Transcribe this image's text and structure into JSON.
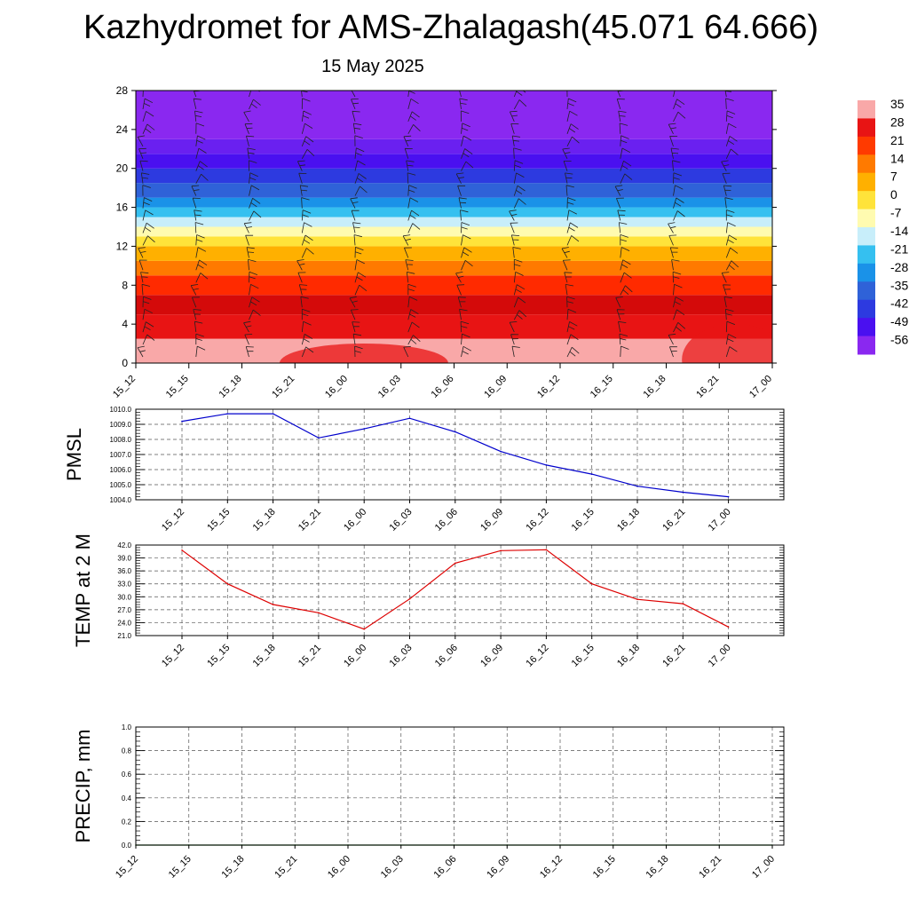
{
  "header": {
    "title": "Kazhydromet for AMS-Zhalagash(45.071 64.666)",
    "subtitle": "15 May 2025"
  },
  "colors": {
    "pmsl_line": "#0000cc",
    "temp_line": "#dd0000",
    "precip_line": "#006600",
    "grid": "#555555"
  },
  "colorbar": {
    "labels": [
      "35",
      "28",
      "21",
      "14",
      "7",
      "0",
      "-7",
      "-14",
      "-21",
      "-28",
      "-35",
      "-42",
      "-49",
      "-56"
    ],
    "colors": [
      "#f9a8a8",
      "#e81414",
      "#ff3a00",
      "#ff7a00",
      "#ffb000",
      "#ffe33a",
      "#fffbb0",
      "#c8eefa",
      "#35c0f0",
      "#1a92e8",
      "#2f62d8",
      "#2d3ae0",
      "#4a10f0",
      "#8a28f0"
    ]
  },
  "chart_data": [
    {
      "type": "heatmap",
      "title": "",
      "xlabel": "",
      "ylabel": "",
      "x": [
        "15_12",
        "15_15",
        "15_18",
        "15_21",
        "16_00",
        "16_03",
        "16_06",
        "16_09",
        "16_12",
        "16_15",
        "16_18",
        "16_21",
        "17_00"
      ],
      "ylim": [
        0,
        28
      ],
      "yticks": [
        0,
        4,
        8,
        12,
        16,
        20,
        24,
        28
      ],
      "levels": [
        {
          "y0": 0,
          "y1": 2.5,
          "value": 35
        },
        {
          "y0": 2.5,
          "y1": 5,
          "value": 30
        },
        {
          "y0": 5,
          "y1": 7,
          "value": 26
        },
        {
          "y0": 7,
          "y1": 9,
          "value": 21
        },
        {
          "y0": 9,
          "y1": 10.5,
          "value": 14
        },
        {
          "y0": 10.5,
          "y1": 12,
          "value": 7
        },
        {
          "y0": 12,
          "y1": 13,
          "value": 0
        },
        {
          "y0": 13,
          "y1": 14,
          "value": -7
        },
        {
          "y0": 14,
          "y1": 15,
          "value": -14
        },
        {
          "y0": 15,
          "y1": 16,
          "value": -21
        },
        {
          "y0": 16,
          "y1": 17,
          "value": -28
        },
        {
          "y0": 17,
          "y1": 18.5,
          "value": -35
        },
        {
          "y0": 18.5,
          "y1": 20,
          "value": -42
        },
        {
          "y0": 20,
          "y1": 21.5,
          "value": -49
        },
        {
          "y0": 21.5,
          "y1": 23,
          "value": -56
        },
        {
          "y0": 23,
          "y1": 28,
          "value": -60
        }
      ],
      "wind_barbs": true
    },
    {
      "type": "line",
      "title": "",
      "xlabel": "",
      "ylabel": "PMSL",
      "x": [
        "15_12",
        "15_15",
        "15_18",
        "15_21",
        "16_00",
        "16_03",
        "16_06",
        "16_09",
        "16_12",
        "16_15",
        "16_18",
        "16_21",
        "17_00"
      ],
      "series": [
        {
          "values": [
            1009.2,
            1009.7,
            1009.7,
            1008.1,
            1008.7,
            1009.4,
            1008.5,
            1007.2,
            1006.3,
            1005.7,
            1004.9,
            1004.5,
            1004.2
          ]
        }
      ],
      "ylim": [
        1004.0,
        1010.0
      ],
      "yticks": [
        "1004.0",
        "1005.0",
        "1006.0",
        "1007.0",
        "1008.0",
        "1009.0",
        "1010.0"
      ],
      "grid": true
    },
    {
      "type": "line",
      "title": "",
      "xlabel": "",
      "ylabel": "TEMP at 2 M",
      "x": [
        "15_12",
        "15_15",
        "15_18",
        "15_21",
        "16_00",
        "16_03",
        "16_06",
        "16_09",
        "16_12",
        "16_15",
        "16_18",
        "16_21",
        "17_00"
      ],
      "series": [
        {
          "values": [
            40.8,
            33.0,
            28.2,
            26.3,
            22.5,
            29.5,
            37.8,
            40.7,
            40.9,
            33.0,
            29.4,
            28.4,
            23.0
          ]
        }
      ],
      "ylim": [
        21.0,
        42.0
      ],
      "yticks": [
        "21.0",
        "24.0",
        "27.0",
        "30.0",
        "33.0",
        "36.0",
        "39.0",
        "42.0"
      ],
      "grid": true
    },
    {
      "type": "line",
      "title": "",
      "xlabel": "",
      "ylabel": "PRECIP, mm",
      "x": [
        "15_12",
        "15_15",
        "15_18",
        "15_21",
        "16_00",
        "16_03",
        "16_06",
        "16_09",
        "16_12",
        "16_15",
        "16_18",
        "16_21",
        "17_00"
      ],
      "series": [
        {
          "values": [
            0,
            0,
            0,
            0,
            0,
            0,
            0,
            0,
            0,
            0,
            0,
            0,
            0
          ]
        }
      ],
      "ylim": [
        0.0,
        1.0
      ],
      "yticks": [
        "0.0",
        "0.2",
        "0.4",
        "0.6",
        "0.8",
        "1.0"
      ],
      "grid": true
    }
  ]
}
